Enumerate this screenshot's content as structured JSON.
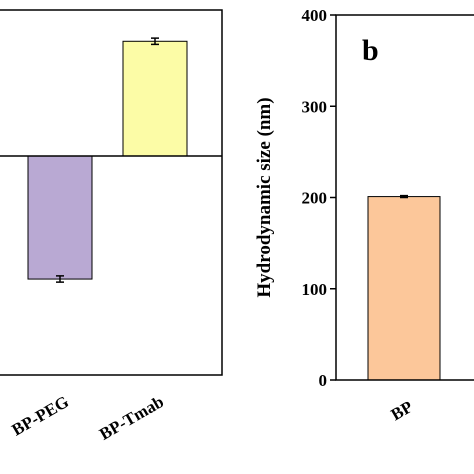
{
  "chart_data": [
    {
      "type": "bar",
      "categories": [
        "BP-PEG",
        "BP-Tmab"
      ],
      "values": [
        -23.6,
        22
      ],
      "errors": [
        0.6,
        0.6
      ],
      "colors": [
        "#b9a9d3",
        "#fcfca6"
      ],
      "ylim": [
        -42,
        28
      ]
    },
    {
      "type": "bar",
      "panel_label": "b",
      "ylabel": "Hydrodynamic size (nm)",
      "categories": [
        "BP"
      ],
      "values": [
        201
      ],
      "errors": [
        1
      ],
      "colors": [
        "#fcc79a"
      ],
      "ylim": [
        0,
        400
      ],
      "yticks": [
        0,
        100,
        200,
        300,
        400
      ]
    }
  ]
}
